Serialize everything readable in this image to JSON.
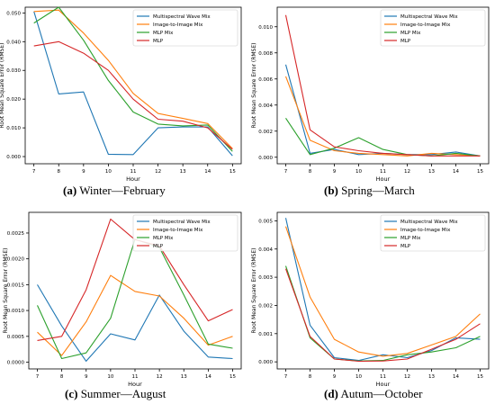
{
  "legend_entries": [
    "Multispectral Wave Mix",
    "Image-to-Image Mix",
    "MLP Mix",
    "MLP"
  ],
  "colors": {
    "Multispectral Wave Mix": "#1f77b4",
    "Image-to-Image Mix": "#ff7f0e",
    "MLP Mix": "#2ca02c",
    "MLP": "#d62728"
  },
  "captions": [
    {
      "letter": "(a)",
      "text": "Winter—February"
    },
    {
      "letter": "(b)",
      "text": "Spring—March"
    },
    {
      "letter": "(c)",
      "text": "Summer—August"
    },
    {
      "letter": "(d)",
      "text": "Autum—October"
    }
  ],
  "chart_data": [
    {
      "type": "line",
      "xlabel": "Hour",
      "ylabel": "Root Mean Square Error (RMSE)",
      "x": [
        7,
        8,
        9,
        10,
        11,
        12,
        13,
        14,
        15
      ],
      "ylim": [
        -0.0025,
        0.052
      ],
      "yticks": [
        "0.000",
        "0.010",
        "0.020",
        "0.030",
        "0.040",
        "0.050"
      ],
      "ytick_values": [
        0,
        0.01,
        0.02,
        0.03,
        0.04,
        0.05
      ],
      "legend": "top-right",
      "series": [
        {
          "name": "Multispectral Wave Mix",
          "values": [
            0.0505,
            0.0218,
            0.0225,
            0.0008,
            0.0007,
            0.01,
            0.0103,
            0.0103,
            0.0003
          ]
        },
        {
          "name": "Image-to-Image Mix",
          "values": [
            0.0505,
            0.051,
            0.043,
            0.0335,
            0.022,
            0.015,
            0.0133,
            0.0115,
            0.0028
          ]
        },
        {
          "name": "MLP Mix",
          "values": [
            0.0465,
            0.052,
            0.0405,
            0.0265,
            0.0155,
            0.0113,
            0.0107,
            0.011,
            0.0018
          ]
        },
        {
          "name": "MLP",
          "values": [
            0.0385,
            0.04,
            0.036,
            0.03,
            0.02,
            0.013,
            0.0123,
            0.01,
            0.0025
          ]
        }
      ]
    },
    {
      "type": "line",
      "xlabel": "Hour",
      "ylabel": "Root Mean Square Error (RMSE)",
      "x": [
        7,
        8,
        9,
        10,
        11,
        12,
        13,
        14,
        15
      ],
      "ylim": [
        -0.0005,
        0.0115
      ],
      "yticks": [
        "0.000",
        "0.002",
        "0.004",
        "0.006",
        "0.008",
        "0.010"
      ],
      "ytick_values": [
        0,
        0.002,
        0.004,
        0.006,
        0.008,
        0.01
      ],
      "legend": "top-right",
      "series": [
        {
          "name": "Multispectral Wave Mix",
          "values": [
            0.0071,
            0.0003,
            0.0006,
            0.0002,
            0.0003,
            0.0002,
            0.0002,
            0.0004,
            0.0001
          ]
        },
        {
          "name": "Image-to-Image Mix",
          "values": [
            0.0062,
            0.0013,
            0.0005,
            0.0003,
            0.0002,
            0.0001,
            0.0003,
            0.0002,
            0.0001
          ]
        },
        {
          "name": "MLP Mix",
          "values": [
            0.003,
            0.0002,
            0.0007,
            0.0015,
            0.0006,
            0.0002,
            0.0001,
            0.0003,
            0.0001
          ]
        },
        {
          "name": "MLP",
          "values": [
            0.0109,
            0.0021,
            0.0008,
            0.0005,
            0.0003,
            0.0002,
            0.0001,
            0.0001,
            0.0001
          ]
        }
      ]
    },
    {
      "type": "line",
      "xlabel": "Hour",
      "ylabel": "Root Mean Square Error (RMSE)",
      "x": [
        7,
        8,
        9,
        10,
        11,
        12,
        13,
        14,
        15
      ],
      "ylim": [
        -0.00013,
        0.0029
      ],
      "yticks": [
        "0.0000",
        "0.0005",
        "0.0010",
        "0.0015",
        "0.0020",
        "0.0025"
      ],
      "ytick_values": [
        0,
        0.0005,
        0.001,
        0.0015,
        0.002,
        0.0025
      ],
      "legend": "top-right",
      "series": [
        {
          "name": "Multispectral Wave Mix",
          "values": [
            0.0015,
            0.0007,
            2e-05,
            0.00055,
            0.00043,
            0.0013,
            0.0006,
            0.0001,
            7e-05
          ]
        },
        {
          "name": "Image-to-Image Mix",
          "values": [
            0.00058,
            0.00013,
            0.00078,
            0.00168,
            0.00137,
            0.00128,
            0.00085,
            0.00033,
            0.0005
          ]
        },
        {
          "name": "MLP Mix",
          "values": [
            0.0011,
            7e-05,
            0.00018,
            0.00085,
            0.00238,
            0.00222,
            0.0013,
            0.00035,
            0.00027
          ]
        },
        {
          "name": "MLP",
          "values": [
            0.00042,
            0.0005,
            0.0014,
            0.00277,
            0.00237,
            0.00225,
            0.0015,
            0.0008,
            0.00102
          ]
        }
      ]
    },
    {
      "type": "line",
      "xlabel": "Hour",
      "ylabel": "Root Mean Square Error (RMSE)",
      "x": [
        7,
        8,
        9,
        10,
        11,
        12,
        13,
        14,
        15
      ],
      "ylim": [
        -0.00025,
        0.0053
      ],
      "yticks": [
        "0.000",
        "0.001",
        "0.002",
        "0.003",
        "0.004",
        "0.005"
      ],
      "ytick_values": [
        0,
        0.001,
        0.002,
        0.003,
        0.004,
        0.005
      ],
      "legend": "top-right",
      "series": [
        {
          "name": "Multispectral Wave Mix",
          "values": [
            0.0051,
            0.0013,
            0.00015,
            5e-05,
            0.00025,
            0.00015,
            0.0004,
            0.00085,
            0.0008
          ]
        },
        {
          "name": "Image-to-Image Mix",
          "values": [
            0.0048,
            0.0023,
            0.0008,
            0.00035,
            0.0002,
            0.0003,
            0.0006,
            0.0009,
            0.0017
          ]
        },
        {
          "name": "MLP Mix",
          "values": [
            0.0034,
            0.00085,
            0.0001,
            3e-05,
            5e-05,
            0.00025,
            0.00035,
            0.0005,
            0.0009
          ]
        },
        {
          "name": "MLP",
          "values": [
            0.0033,
            0.0009,
            0.0001,
            2e-05,
            3e-05,
            0.0001,
            0.00045,
            0.0008,
            0.00135
          ]
        }
      ]
    }
  ]
}
